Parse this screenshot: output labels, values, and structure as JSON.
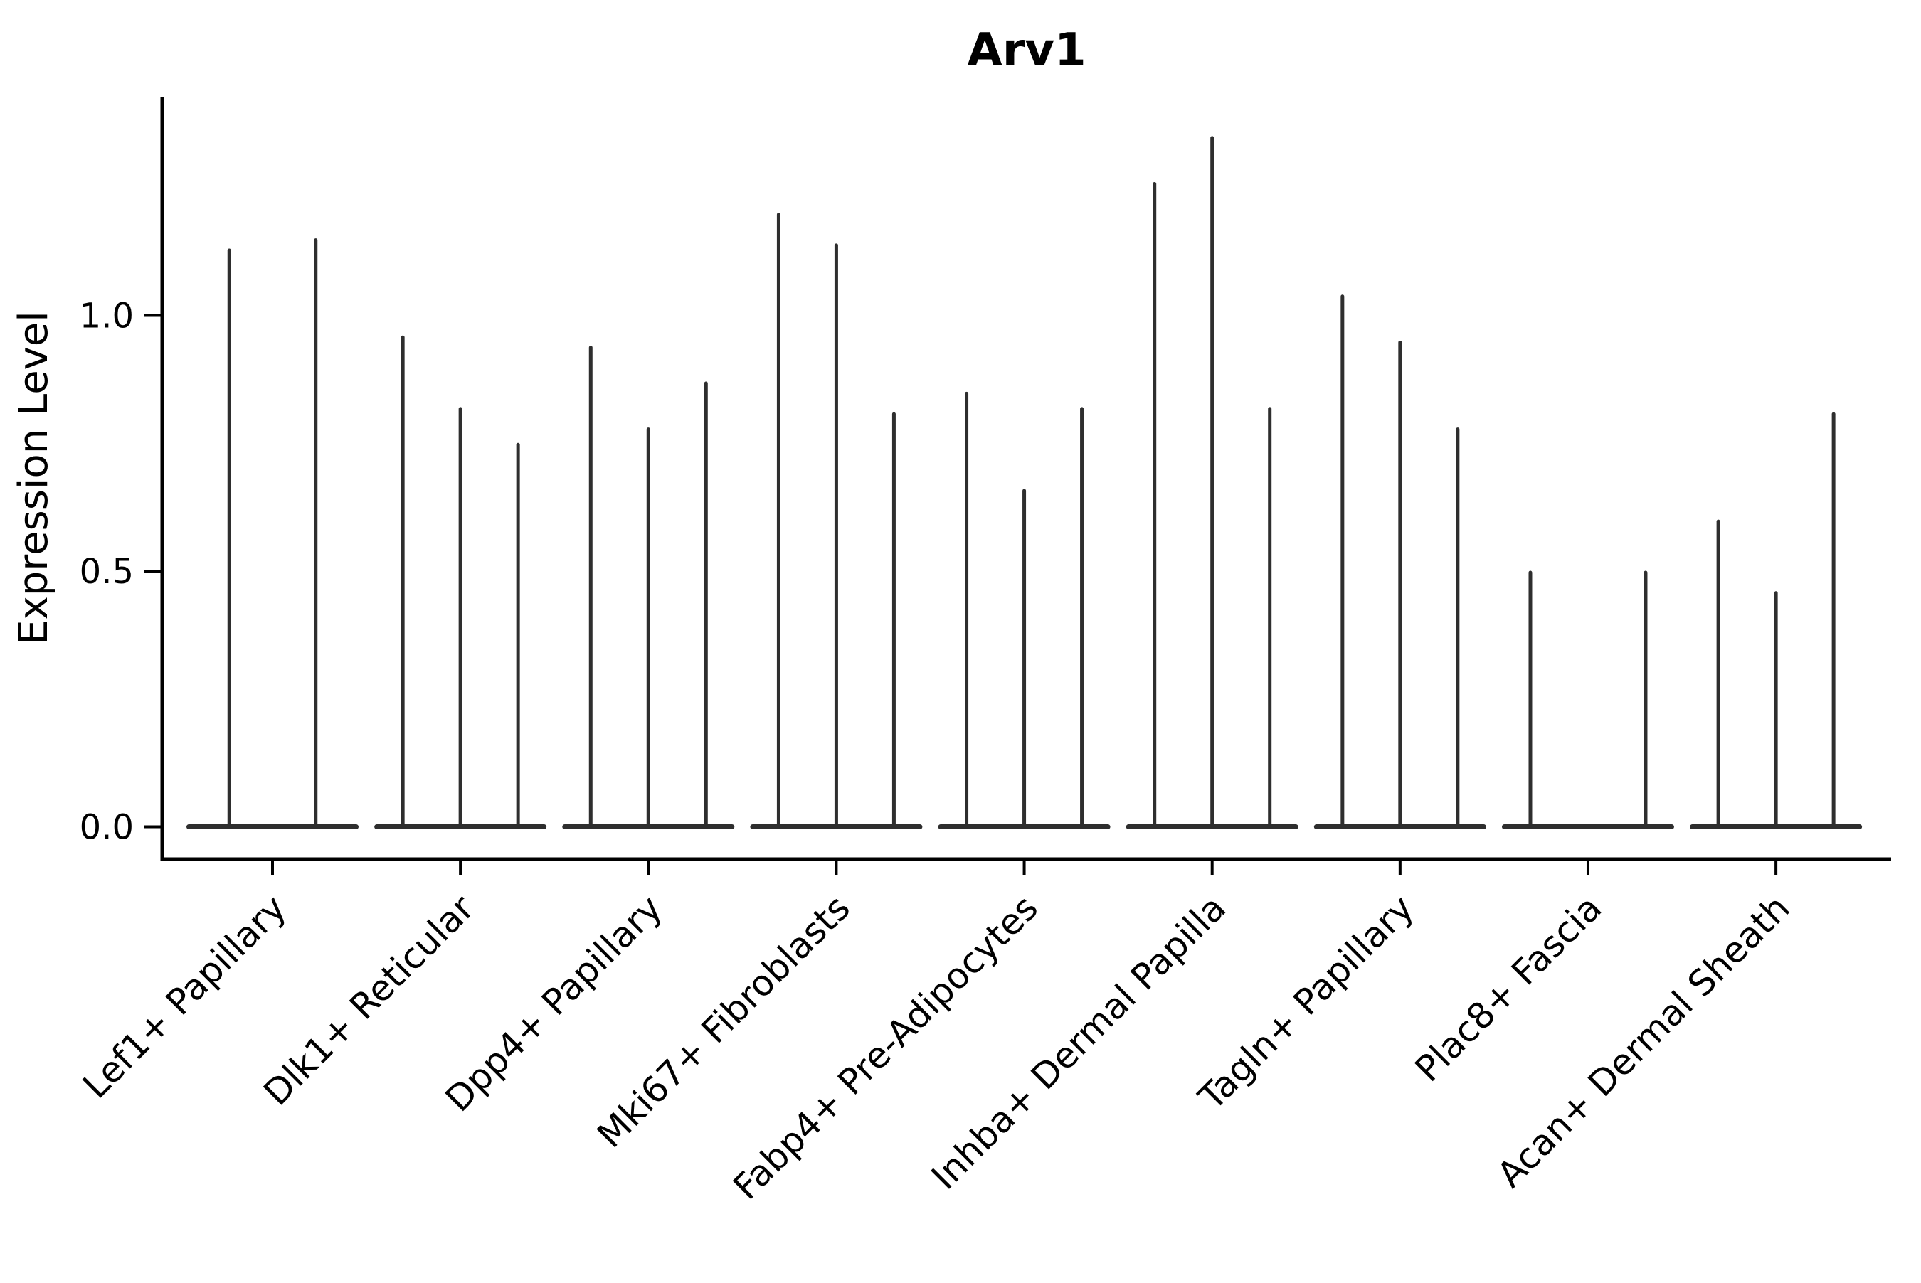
{
  "figure": {
    "title": "Arv1",
    "ylabel": "Expression Level"
  },
  "chart_data": {
    "type": "violin",
    "title": "Arv1",
    "xlabel": "",
    "ylabel": "Expression Level",
    "ylim": [
      -0.06,
      1.43
    ],
    "grid": false,
    "legend": "none",
    "x_tick_rotation_deg": 45,
    "violin_color": "#2e2e2e",
    "axis_color": "#000000",
    "background_color": "#ffffff",
    "y_ticks": [
      {
        "label": "0.0",
        "value": 0.0
      },
      {
        "label": "0.5",
        "value": 0.5
      },
      {
        "label": "1.0",
        "value": 1.0
      }
    ],
    "categories": [
      {
        "label": "Lef1+ Papillary",
        "violin_max_values": [
          1.13,
          1.15
        ]
      },
      {
        "label": "Dlk1+ Reticular",
        "violin_max_values": [
          0.96,
          0.82,
          0.75
        ]
      },
      {
        "label": "Dpp4+ Papillary",
        "violin_max_values": [
          0.94,
          0.78,
          0.87
        ]
      },
      {
        "label": "Mki67+ Fibroblasts",
        "violin_max_values": [
          1.2,
          1.14,
          0.81
        ]
      },
      {
        "label": "Fabp4+ Pre-Adipocytes",
        "violin_max_values": [
          0.85,
          0.66,
          0.82
        ]
      },
      {
        "label": "Inhba+ Dermal Papilla",
        "violin_max_values": [
          1.26,
          1.35,
          0.82
        ]
      },
      {
        "label": "Tagln+ Papillary",
        "violin_max_values": [
          1.04,
          0.95,
          0.78
        ]
      },
      {
        "label": "Plac8+ Fascia",
        "violin_max_values": [
          0.5,
          0.0,
          0.5
        ]
      },
      {
        "label": "Acan+ Dermal Sheath",
        "violin_max_values": [
          0.6,
          0.46,
          0.81
        ]
      }
    ]
  }
}
